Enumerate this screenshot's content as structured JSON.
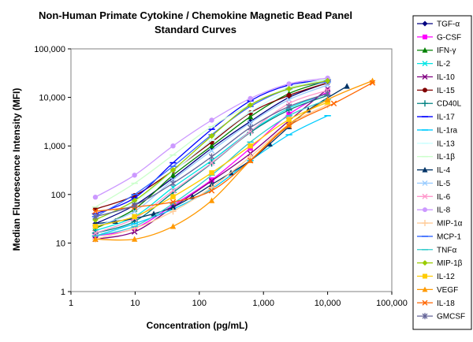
{
  "chart_data": {
    "type": "line",
    "title": "Non-Human Primate Cytokine / Chemokine Magnetic Bead Panel",
    "subtitle": "Standard Curves",
    "xlabel": "Concentration (pg/mL)",
    "ylabel": "Median Fluroescence Intensity (MFI)",
    "xscale": "log",
    "yscale": "log",
    "xlim": [
      1,
      100000
    ],
    "ylim": [
      1,
      100000
    ],
    "xticks": [
      "1",
      "10",
      "100",
      "1,000",
      "10,000",
      "100,000"
    ],
    "yticks": [
      "1",
      "10",
      "100",
      "1,000",
      "10,000",
      "100,000"
    ],
    "grid": false,
    "legend_position": "right",
    "series": [
      {
        "name": "TGF-α",
        "color": "#000080",
        "marker": "diamond",
        "x": [
          2.4,
          9.8,
          39,
          156,
          625,
          2500,
          10000
        ],
        "y": [
          25,
          60,
          220,
          900,
          3200,
          10000,
          20000
        ]
      },
      {
        "name": "G-CSF",
        "color": "#ff00ff",
        "marker": "square",
        "x": [
          2.4,
          9.8,
          39,
          156,
          625,
          2500,
          10000
        ],
        "y": [
          14,
          20,
          60,
          200,
          900,
          4500,
          13000
        ]
      },
      {
        "name": "IFN-γ",
        "color": "#008000",
        "marker": "triangle",
        "x": [
          2.4,
          9.8,
          39,
          156,
          625,
          2500,
          10000
        ],
        "y": [
          20,
          50,
          250,
          1000,
          4000,
          12000,
          22000
        ]
      },
      {
        "name": "IL-2",
        "color": "#00e5e5",
        "marker": "x",
        "x": [
          2.4,
          9.8,
          39,
          156,
          625,
          2500,
          10000
        ],
        "y": [
          18,
          35,
          140,
          500,
          2000,
          6000,
          12000
        ]
      },
      {
        "name": "IL-10",
        "color": "#800080",
        "marker": "x",
        "x": [
          2.4,
          9.8,
          39,
          156,
          625,
          2500,
          10000
        ],
        "y": [
          12,
          17,
          55,
          190,
          700,
          3300,
          15000
        ]
      },
      {
        "name": "IL-15",
        "color": "#800000",
        "marker": "circle",
        "x": [
          2.4,
          9.8,
          39,
          156,
          625,
          2500,
          10000
        ],
        "y": [
          50,
          95,
          310,
          1200,
          4800,
          11000,
          20000
        ]
      },
      {
        "name": "CD40L",
        "color": "#008080",
        "marker": "plus",
        "x": [
          2.4,
          9.8,
          39,
          156,
          625,
          2500,
          10000
        ],
        "y": [
          16,
          28,
          110,
          440,
          1900,
          5500,
          11000
        ]
      },
      {
        "name": "IL-17",
        "color": "#0000ff",
        "marker": "dash",
        "x": [
          2.4,
          9.8,
          39,
          156,
          625,
          2500,
          10000
        ],
        "y": [
          40,
          85,
          450,
          2200,
          8500,
          18000,
          23000
        ]
      },
      {
        "name": "IL-1ra",
        "color": "#00ccff",
        "marker": "dash",
        "x": [
          2.4,
          9.8,
          39,
          156,
          625,
          2500,
          10000
        ],
        "y": [
          14,
          25,
          50,
          130,
          500,
          1700,
          4200
        ]
      },
      {
        "name": "IL-13",
        "color": "#ccffff",
        "marker": "dash",
        "x": [
          2.4,
          9.8,
          39,
          156,
          625,
          2500,
          10000
        ],
        "y": [
          30,
          70,
          300,
          1300,
          5000,
          14000,
          24000
        ]
      },
      {
        "name": "IL-1β",
        "color": "#ccffcc",
        "marker": "dash",
        "x": [
          2.4,
          9.8,
          39,
          156,
          625,
          2500,
          10000
        ],
        "y": [
          55,
          170,
          650,
          2500,
          7000,
          16000,
          24000
        ]
      },
      {
        "name": "IL-4",
        "color": "#003366",
        "marker": "triangle",
        "x": [
          2.4,
          4.9,
          9.8,
          19.5,
          39,
          78,
          156,
          312,
          625,
          1250,
          2500,
          5000,
          20000
        ],
        "y": [
          25,
          28,
          32,
          40,
          55,
          90,
          160,
          280,
          500,
          1100,
          2500,
          5500,
          17000
        ]
      },
      {
        "name": "IL-5",
        "color": "#99ccff",
        "marker": "x",
        "x": [
          2.4,
          9.8,
          39,
          156,
          625,
          2500,
          10000
        ],
        "y": [
          22,
          45,
          200,
          800,
          3000,
          9000,
          18000
        ]
      },
      {
        "name": "IL-6",
        "color": "#ff99cc",
        "marker": "x",
        "x": [
          2.4,
          9.8,
          39,
          156,
          625,
          2500,
          10000
        ],
        "y": [
          16,
          32,
          120,
          450,
          2000,
          7500,
          14000
        ]
      },
      {
        "name": "IL-8",
        "color": "#cc99ff",
        "marker": "circle",
        "x": [
          2.4,
          9.8,
          39,
          156,
          625,
          2500,
          10000
        ],
        "y": [
          88,
          250,
          1000,
          3400,
          9500,
          19000,
          25000
        ]
      },
      {
        "name": "MIP-1α",
        "color": "#ffcc99",
        "marker": "plus",
        "x": [
          2.4,
          9.8,
          39,
          156,
          625,
          2500,
          10000
        ],
        "y": [
          12,
          20,
          45,
          140,
          600,
          2800,
          7000
        ]
      },
      {
        "name": "MCP-1",
        "color": "#3366ff",
        "marker": "dash",
        "x": [
          2.4,
          9.8,
          39,
          156,
          625,
          2500,
          10000
        ],
        "y": [
          35,
          100,
          380,
          1700,
          6500,
          15000,
          21000
        ]
      },
      {
        "name": "TNFα",
        "color": "#33cccc",
        "marker": "dash",
        "x": [
          2.4,
          9.8,
          39,
          156,
          625,
          2500,
          10000
        ],
        "y": [
          14,
          22,
          65,
          250,
          1200,
          4200,
          9000
        ]
      },
      {
        "name": "MIP-1β",
        "color": "#99cc00",
        "marker": "diamond",
        "x": [
          2.4,
          9.8,
          39,
          156,
          625,
          2500,
          10000
        ],
        "y": [
          30,
          75,
          320,
          1600,
          7000,
          15000,
          22000
        ]
      },
      {
        "name": "IL-12",
        "color": "#ffcc00",
        "marker": "square",
        "x": [
          2.4,
          9.8,
          39,
          156,
          625,
          2500,
          10000
        ],
        "y": [
          22,
          35,
          90,
          280,
          1000,
          3500,
          8000
        ]
      },
      {
        "name": "VEGF",
        "color": "#ff9900",
        "marker": "triangle",
        "x": [
          2.4,
          9.8,
          39,
          156,
          625,
          2500,
          10000,
          50000
        ],
        "y": [
          12,
          12,
          22,
          75,
          500,
          2800,
          9000,
          22000
        ]
      },
      {
        "name": "IL-18",
        "color": "#ff6600",
        "marker": "x",
        "x": [
          2.4,
          9.8,
          39,
          156,
          625,
          2500,
          12500,
          50000
        ],
        "y": [
          45,
          55,
          70,
          120,
          500,
          2600,
          7500,
          20000
        ]
      },
      {
        "name": "GMCSF",
        "color": "#666699",
        "marker": "asterisk",
        "x": [
          2.4,
          9.8,
          39,
          156,
          625,
          2500,
          10000
        ],
        "y": [
          35,
          60,
          170,
          600,
          2400,
          6500,
          12000
        ]
      }
    ]
  }
}
